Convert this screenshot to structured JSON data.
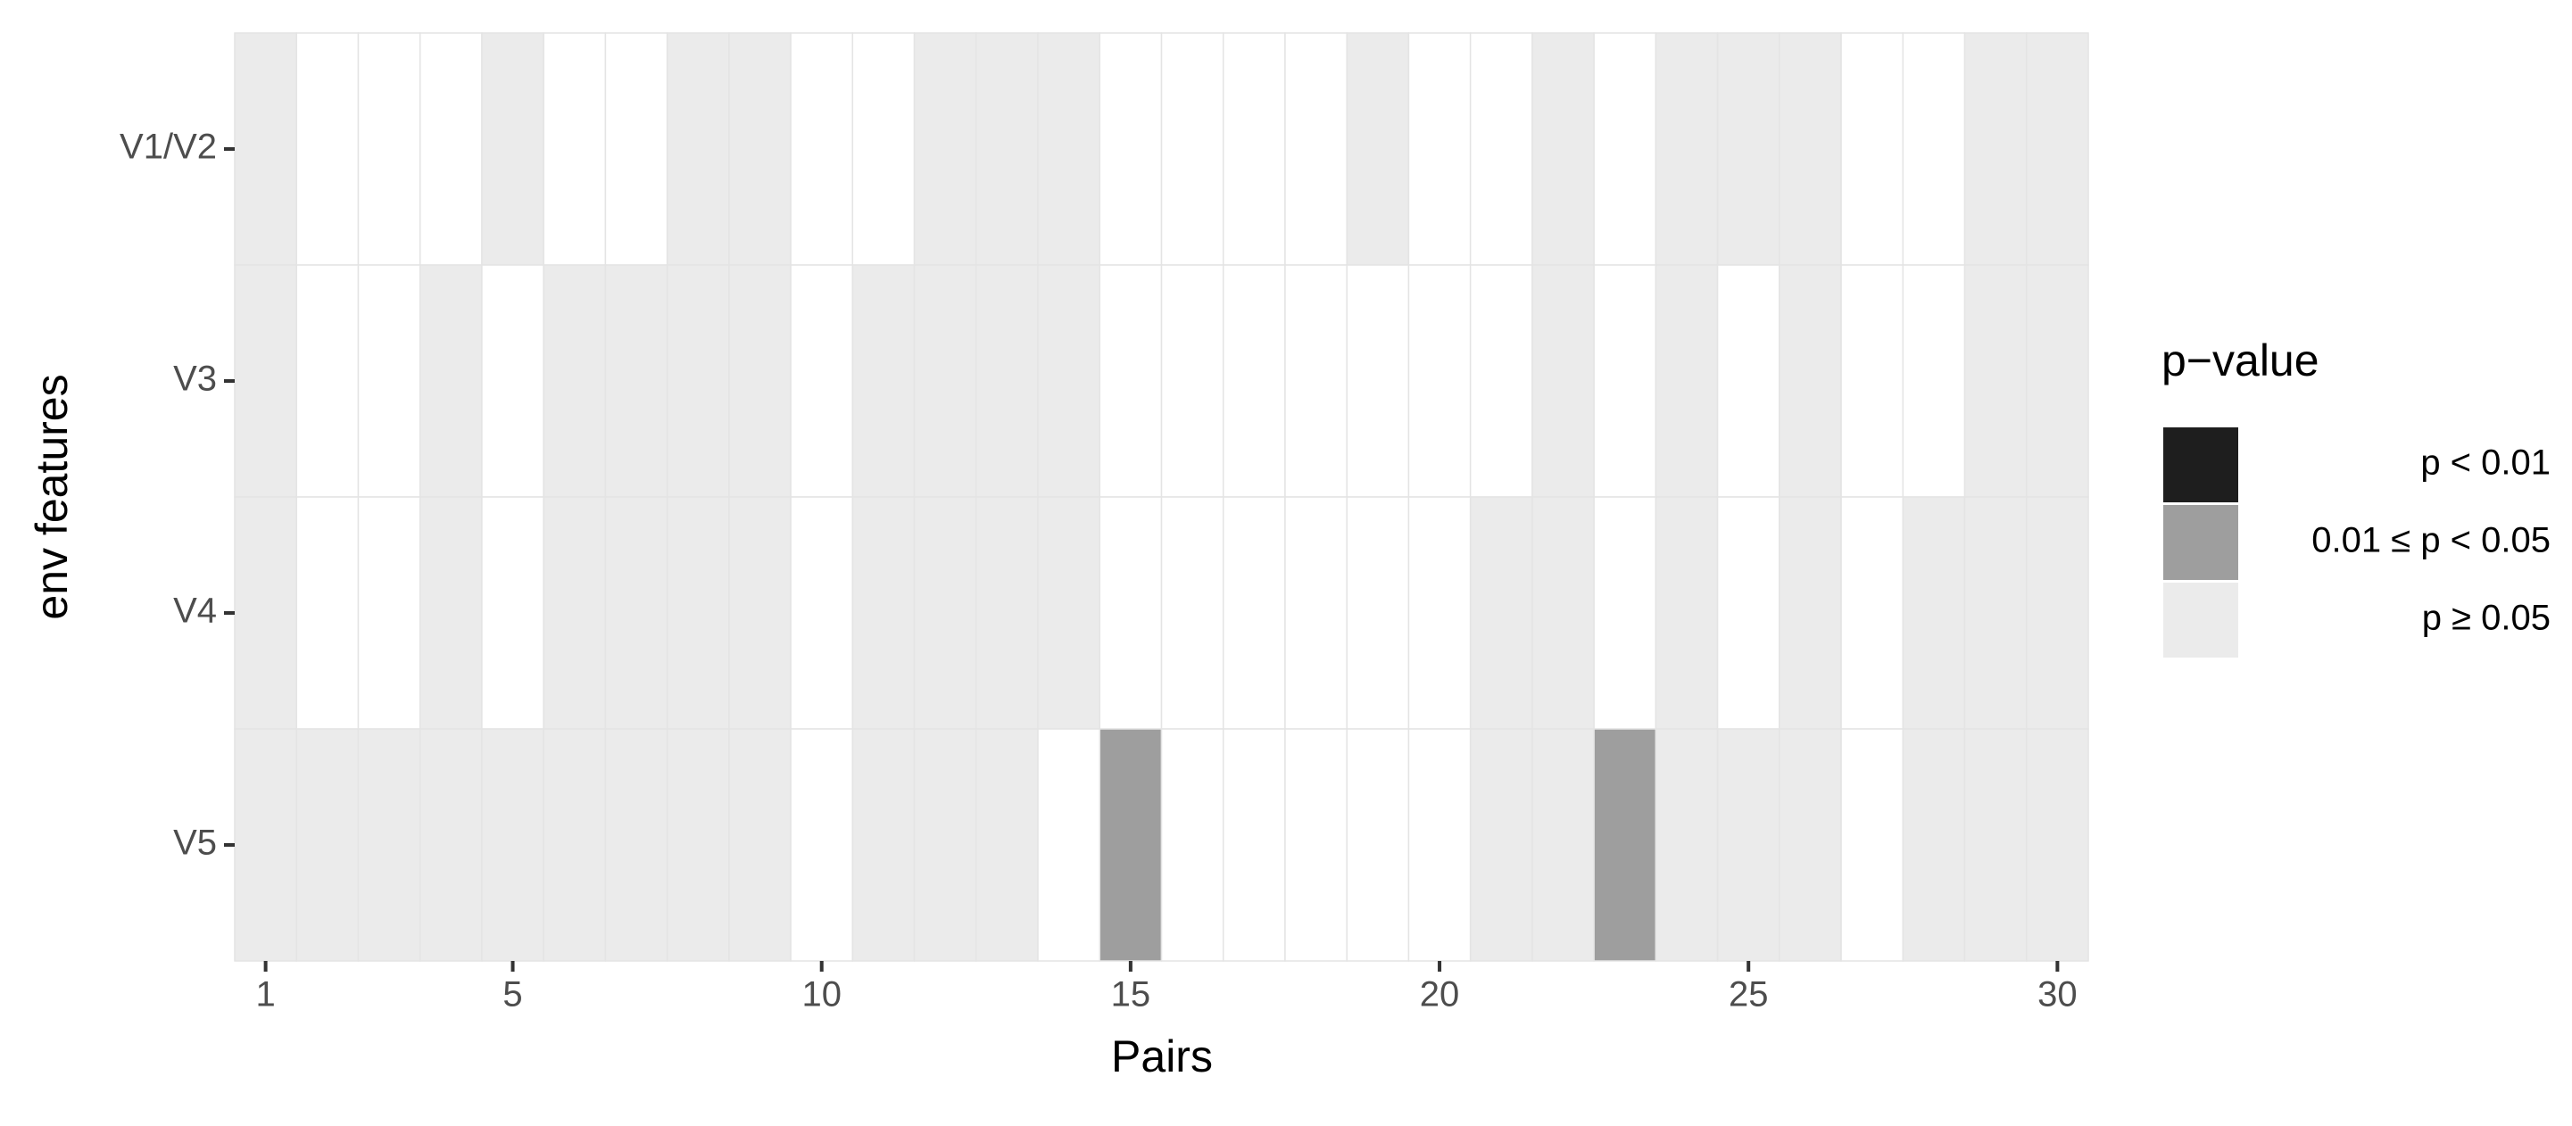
{
  "chart_data": {
    "type": "heatmap",
    "x_label": "Pairs",
    "y_label": "env features",
    "xlim": [
      0.5,
      30.5
    ],
    "xticks": [
      1,
      5,
      10,
      15,
      20,
      25,
      30
    ],
    "x": [
      1,
      2,
      3,
      4,
      5,
      6,
      7,
      8,
      9,
      10,
      11,
      12,
      13,
      14,
      15,
      16,
      17,
      18,
      19,
      20,
      21,
      22,
      23,
      24,
      25,
      26,
      27,
      28,
      29,
      30
    ],
    "categories": [
      "V1/V2",
      "V3",
      "V4",
      "V5"
    ],
    "legend": {
      "title": "p−value",
      "levels": [
        {
          "label": "p < 0.01",
          "color": "#1e1e1e"
        },
        {
          "label": "0.01 ≤ p < 0.05",
          "color": "#9e9e9e"
        },
        {
          "label": "p ≥ 0.05",
          "color": "#ebebeb"
        }
      ]
    },
    "cells": [
      [
        2,
        null,
        null,
        null,
        2,
        null,
        null,
        2,
        2,
        null,
        null,
        2,
        2,
        2,
        null,
        null,
        null,
        null,
        2,
        null,
        null,
        2,
        null,
        2,
        2,
        2,
        null,
        null,
        2,
        2
      ],
      [
        2,
        null,
        null,
        2,
        null,
        2,
        2,
        2,
        2,
        null,
        2,
        2,
        2,
        2,
        null,
        null,
        null,
        null,
        null,
        null,
        null,
        2,
        null,
        2,
        null,
        2,
        null,
        null,
        2,
        2
      ],
      [
        2,
        null,
        null,
        2,
        null,
        2,
        2,
        2,
        2,
        null,
        2,
        2,
        2,
        2,
        null,
        null,
        null,
        null,
        null,
        null,
        2,
        2,
        null,
        2,
        null,
        2,
        null,
        2,
        2,
        2
      ],
      [
        2,
        2,
        2,
        2,
        2,
        2,
        2,
        2,
        2,
        null,
        2,
        2,
        2,
        null,
        1,
        null,
        null,
        null,
        null,
        null,
        2,
        2,
        1,
        2,
        2,
        2,
        null,
        2,
        2,
        2
      ]
    ]
  }
}
